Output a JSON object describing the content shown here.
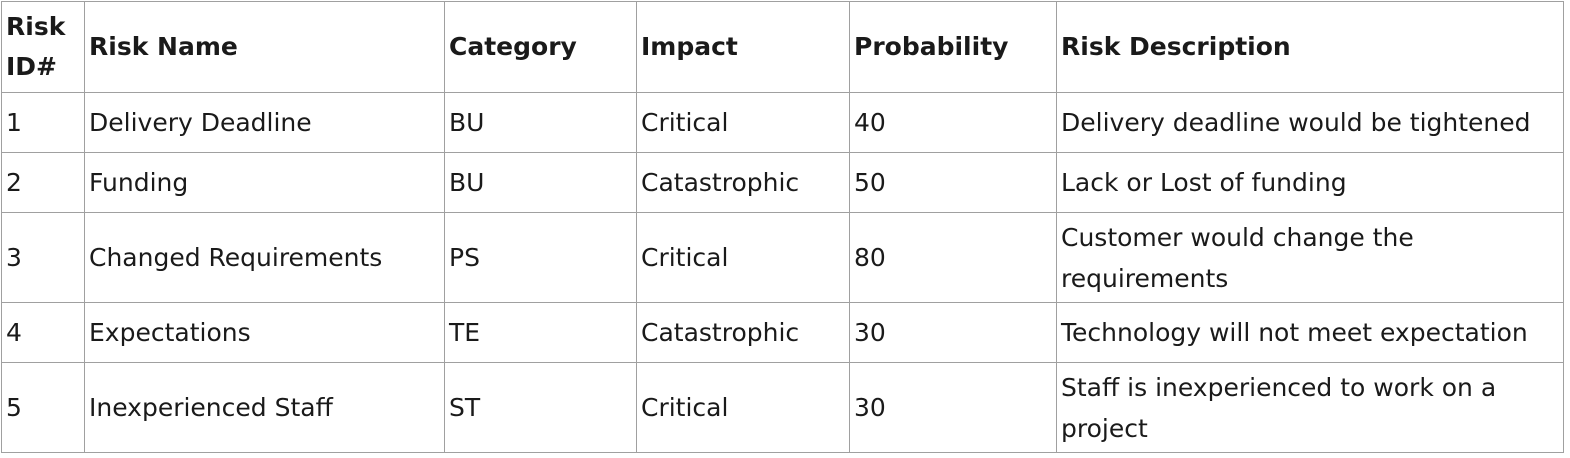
{
  "table": {
    "headers": [
      "Risk ID#",
      "Risk Name",
      "Category",
      "Impact",
      "Probability",
      "Risk Description"
    ],
    "rows": [
      [
        "1",
        "Delivery Deadline",
        "BU",
        "Critical",
        "40",
        "Delivery deadline would be tightened"
      ],
      [
        "2",
        "Funding",
        "BU",
        "Catastrophic",
        "50",
        "Lack or Lost of funding"
      ],
      [
        "3",
        "Changed Requirements",
        "PS",
        "Critical",
        "80",
        "Customer would change the requirements"
      ],
      [
        "4",
        "Expectations",
        "TE",
        "Catastrophic",
        "30",
        "Technology will not meet expectation"
      ],
      [
        "5",
        "Inexperienced Staff",
        "ST",
        "Critical",
        "30",
        "Staff is inexperienced to work on a project"
      ]
    ]
  }
}
